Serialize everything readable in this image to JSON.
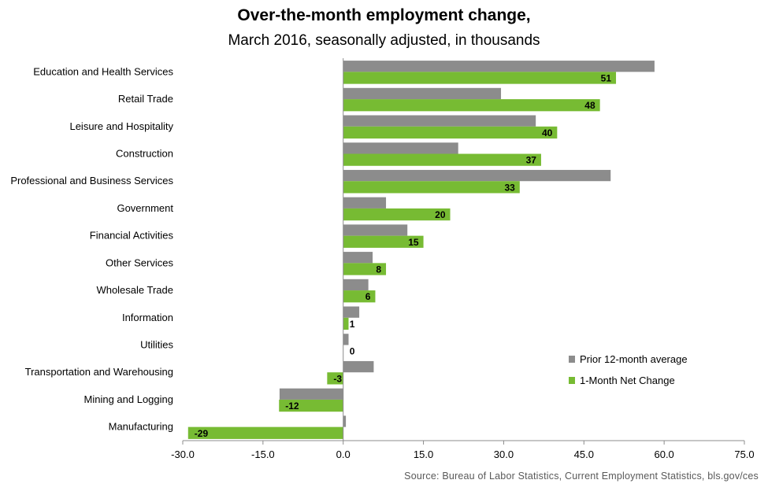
{
  "chart_data": {
    "type": "bar",
    "orientation": "horizontal",
    "title": "Over-the-month employment change,",
    "subtitle": "March 2016, seasonally adjusted, in thousands",
    "source": "Source:  Bureau of Labor Statistics, Current Employment  Statistics, bls.gov/ces",
    "categories": [
      "Education and Health Services",
      "Retail Trade",
      "Leisure and Hospitality",
      "Construction",
      "Professional and Business Services",
      "Government",
      "Financial Activities",
      "Other Services",
      "Wholesale Trade",
      "Information",
      "Utilities",
      "Transportation and Warehousing",
      "Mining and Logging",
      "Manufacturing"
    ],
    "series": [
      {
        "name": "Prior 12-month average",
        "color": "#8c8c8c",
        "values": [
          58.2,
          29.5,
          36.0,
          21.5,
          50.0,
          8.0,
          12.0,
          5.5,
          4.7,
          3.0,
          1.0,
          5.7,
          -11.9,
          0.5
        ],
        "labels": null
      },
      {
        "name": "1-Month Net Change",
        "color": "#77bb33",
        "values": [
          51,
          48,
          40,
          37,
          33,
          20,
          15,
          8,
          6,
          1,
          0,
          -3,
          -12,
          -29
        ],
        "labels": [
          "51",
          "48",
          "40",
          "37",
          "33",
          "20",
          "15",
          "8",
          "6",
          "1",
          "0",
          "-3",
          "-12",
          "-29"
        ]
      }
    ],
    "xlim": [
      -30.0,
      75.0
    ],
    "xticks": [
      -30.0,
      -15.0,
      0.0,
      15.0,
      30.0,
      45.0,
      60.0,
      75.0
    ],
    "xtick_labels": [
      "-30.0",
      "-15.0",
      "0.0",
      "15.0",
      "30.0",
      "45.0",
      "60.0",
      "75.0"
    ],
    "grid": false,
    "legend_position": "right"
  }
}
